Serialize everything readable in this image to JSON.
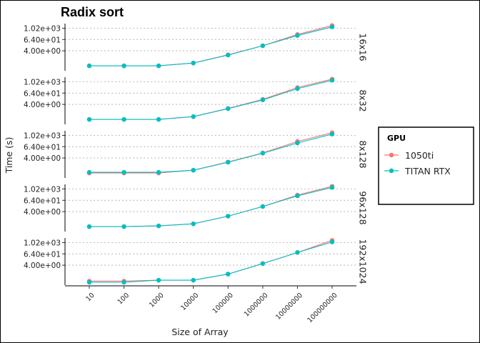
{
  "chart_data": {
    "type": "line",
    "title": "Radix sort",
    "xlabel": "Size of Array",
    "ylabel": "Time (s)",
    "x_categories": [
      "10",
      "100",
      "1000",
      "10000",
      "100000",
      "1000000",
      "10000000",
      "100000000"
    ],
    "y_scale": "log",
    "y_ticks": [
      "4.00e+00",
      "6.40e+01",
      "1.02e+03"
    ],
    "y_tick_values": [
      4,
      64,
      1024
    ],
    "y_range": [
      0.03,
      3200
    ],
    "grid": "horizontal dotted",
    "legend": {
      "title": "GPU",
      "placement": "right",
      "entries": [
        "1050ti",
        "TITAN RTX"
      ]
    },
    "colors": {
      "1050ti": "#F8766D",
      "TITAN RTX": "#00BFC4"
    },
    "panels": [
      {
        "label": "16x16",
        "series": [
          {
            "name": "1050ti",
            "values": [
              0.1,
              0.1,
              0.1,
              0.2,
              1.5,
              14,
              220,
              2000
            ]
          },
          {
            "name": "TITAN RTX",
            "values": [
              0.1,
              0.1,
              0.1,
              0.2,
              1.4,
              14,
              170,
              1400
            ]
          }
        ]
      },
      {
        "label": "8x32",
        "series": [
          {
            "name": "1050ti",
            "values": [
              0.1,
              0.1,
              0.1,
              0.2,
              1.5,
              14,
              250,
              2000
            ]
          },
          {
            "name": "TITAN RTX",
            "values": [
              0.1,
              0.1,
              0.1,
              0.2,
              1.4,
              12,
              190,
              1500
            ]
          }
        ]
      },
      {
        "label": "8x128",
        "series": [
          {
            "name": "1050ti",
            "values": [
              0.1,
              0.1,
              0.1,
              0.2,
              1.5,
              14,
              230,
              2000
            ]
          },
          {
            "name": "TITAN RTX",
            "values": [
              0.12,
              0.12,
              0.12,
              0.2,
              1.4,
              13,
              160,
              1400
            ]
          }
        ]
      },
      {
        "label": "96x128",
        "series": [
          {
            "name": "1050ti",
            "values": [
              0.1,
              0.1,
              0.12,
              0.2,
              1.3,
              14,
              230,
              2000
            ]
          },
          {
            "name": "TITAN RTX",
            "values": [
              0.1,
              0.1,
              0.12,
              0.2,
              1.3,
              14,
              190,
              1500
            ]
          }
        ]
      },
      {
        "label": "192x1024",
        "series": [
          {
            "name": "1050ti",
            "values": [
              0.08,
              0.08,
              0.1,
              0.1,
              0.45,
              6,
              90,
              1800
            ]
          },
          {
            "name": "TITAN RTX",
            "values": [
              0.06,
              0.06,
              0.1,
              0.1,
              0.45,
              6,
              90,
              1200
            ]
          }
        ]
      }
    ]
  }
}
